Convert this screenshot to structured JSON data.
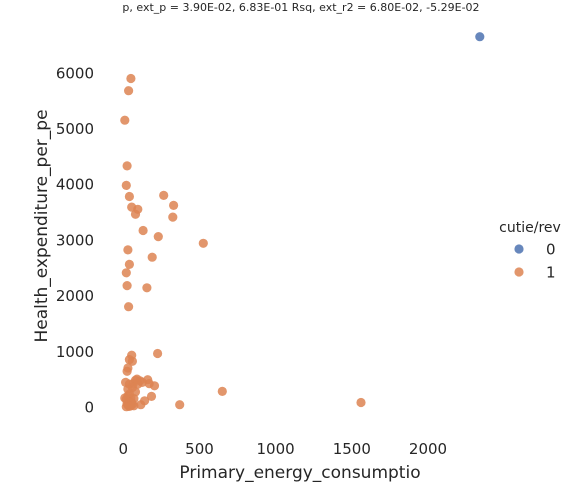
{
  "chart_data": {
    "type": "scatter",
    "title": "p, ext_p = 3.90E-02, 6.83E-01 Rsq, ext_r2 = 6.80E-02, -5.29E-02",
    "xlabel": "Primary_energy_consumptio",
    "ylabel": "Health_expenditure_per_pe",
    "xlim": [
      -120,
      2420
    ],
    "ylim": [
      -450,
      6950
    ],
    "xticks": [
      "0",
      "500",
      "1000",
      "1500",
      "2000"
    ],
    "xtick_values": [
      0,
      500,
      1000,
      1500,
      2000
    ],
    "yticks": [
      "0",
      "1000",
      "2000",
      "3000",
      "4000",
      "5000",
      "6000"
    ],
    "ytick_values": [
      0,
      1000,
      2000,
      3000,
      4000,
      5000,
      6000
    ],
    "grid": false,
    "legend": {
      "title": "cutie/rev",
      "placement": "right"
    },
    "series": [
      {
        "name": "0",
        "color": "#4c72b0",
        "points": [
          [
            2340,
            6650
          ]
        ]
      },
      {
        "name": "1",
        "color": "#dd8452",
        "points": [
          [
            50,
            5900
          ],
          [
            35,
            5680
          ],
          [
            10,
            5150
          ],
          [
            25,
            4330
          ],
          [
            20,
            3980
          ],
          [
            40,
            3780
          ],
          [
            265,
            3800
          ],
          [
            330,
            3620
          ],
          [
            55,
            3590
          ],
          [
            95,
            3550
          ],
          [
            80,
            3460
          ],
          [
            325,
            3410
          ],
          [
            130,
            3170
          ],
          [
            230,
            3060
          ],
          [
            525,
            2940
          ],
          [
            30,
            2820
          ],
          [
            190,
            2690
          ],
          [
            40,
            2560
          ],
          [
            20,
            2410
          ],
          [
            25,
            2180
          ],
          [
            155,
            2140
          ],
          [
            35,
            1800
          ],
          [
            225,
            960
          ],
          [
            55,
            930
          ],
          [
            40,
            850
          ],
          [
            60,
            820
          ],
          [
            30,
            700
          ],
          [
            25,
            640
          ],
          [
            90,
            500
          ],
          [
            160,
            490
          ],
          [
            80,
            480
          ],
          [
            110,
            470
          ],
          [
            15,
            440
          ],
          [
            125,
            440
          ],
          [
            65,
            420
          ],
          [
            170,
            420
          ],
          [
            40,
            410
          ],
          [
            95,
            410
          ],
          [
            205,
            380
          ],
          [
            60,
            350
          ],
          [
            30,
            320
          ],
          [
            650,
            280
          ],
          [
            80,
            270
          ],
          [
            40,
            230
          ],
          [
            30,
            200
          ],
          [
            185,
            190
          ],
          [
            10,
            160
          ],
          [
            50,
            150
          ],
          [
            70,
            150
          ],
          [
            20,
            140
          ],
          [
            140,
            110
          ],
          [
            35,
            90
          ],
          [
            45,
            80
          ],
          [
            55,
            75
          ],
          [
            1560,
            80
          ],
          [
            25,
            60
          ],
          [
            60,
            50
          ],
          [
            115,
            40
          ],
          [
            370,
            40
          ],
          [
            30,
            30
          ],
          [
            50,
            20
          ],
          [
            70,
            20
          ],
          [
            40,
            10
          ],
          [
            20,
            5
          ]
        ]
      }
    ]
  }
}
